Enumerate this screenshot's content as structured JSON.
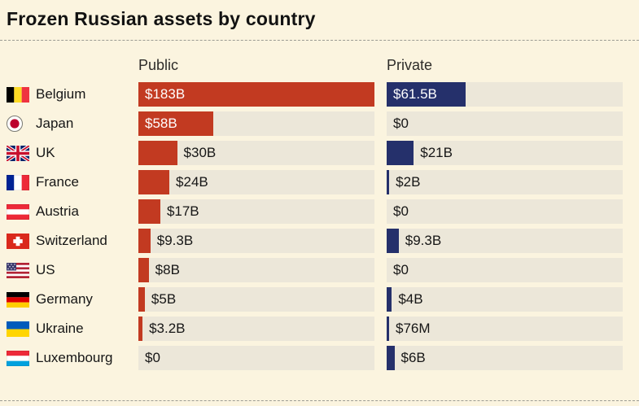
{
  "title": "Frozen Russian assets by country",
  "columns": {
    "public": "Public",
    "private": "Private"
  },
  "colors": {
    "background": "#FBF4DF",
    "public_bar": "#C23A21",
    "private_bar": "#25306B",
    "track": "#ECE7D9",
    "text": "#161616",
    "inside_label": "#FFFFFF",
    "divider": "#9B9B93"
  },
  "chart_data": {
    "type": "bar",
    "title": "Frozen Russian assets by country",
    "orientation": "horizontal",
    "categories": [
      "Belgium",
      "Japan",
      "UK",
      "France",
      "Austria",
      "Switzerland",
      "US",
      "Germany",
      "Ukraine",
      "Luxembourg"
    ],
    "series": [
      {
        "name": "Public",
        "values_billions": [
          183,
          58,
          30,
          24,
          17,
          9.3,
          8,
          5,
          3.2,
          0
        ],
        "labels": [
          "$183B",
          "$58B",
          "$30B",
          "$24B",
          "$17B",
          "$9.3B",
          "$8B",
          "$5B",
          "$3.2B",
          "$0"
        ],
        "color": "#C23A21"
      },
      {
        "name": "Private",
        "values_billions": [
          61.5,
          0,
          21,
          2,
          0,
          9.3,
          0,
          4,
          0.076,
          6
        ],
        "labels": [
          "$61.5B",
          "$0",
          "$21B",
          "$2B",
          "$0",
          "$9.3B",
          "$0",
          "$4B",
          "$76M",
          "$6B"
        ],
        "color": "#25306B"
      }
    ],
    "x_max_billions": 183,
    "grid": false,
    "legend_position": "column-headers"
  },
  "rows": [
    {
      "country": "Belgium",
      "flag": "belgium",
      "flag_icon": "belgium-flag-icon",
      "public": {
        "label": "$183B",
        "value": 183
      },
      "private": {
        "label": "$61.5B",
        "value": 61.5
      }
    },
    {
      "country": "Japan",
      "flag": "japan",
      "flag_icon": "japan-flag-icon",
      "public": {
        "label": "$58B",
        "value": 58
      },
      "private": {
        "label": "$0",
        "value": 0
      }
    },
    {
      "country": "UK",
      "flag": "uk",
      "flag_icon": "uk-flag-icon",
      "public": {
        "label": "$30B",
        "value": 30
      },
      "private": {
        "label": "$21B",
        "value": 21
      }
    },
    {
      "country": "France",
      "flag": "france",
      "flag_icon": "france-flag-icon",
      "public": {
        "label": "$24B",
        "value": 24
      },
      "private": {
        "label": "$2B",
        "value": 2
      }
    },
    {
      "country": "Austria",
      "flag": "austria",
      "flag_icon": "austria-flag-icon",
      "public": {
        "label": "$17B",
        "value": 17
      },
      "private": {
        "label": "$0",
        "value": 0
      }
    },
    {
      "country": "Switzerland",
      "flag": "switzerland",
      "flag_icon": "switzerland-flag-icon",
      "public": {
        "label": "$9.3B",
        "value": 9.3
      },
      "private": {
        "label": "$9.3B",
        "value": 9.3
      }
    },
    {
      "country": "US",
      "flag": "us",
      "flag_icon": "us-flag-icon",
      "public": {
        "label": "$8B",
        "value": 8
      },
      "private": {
        "label": "$0",
        "value": 0
      }
    },
    {
      "country": "Germany",
      "flag": "germany",
      "flag_icon": "germany-flag-icon",
      "public": {
        "label": "$5B",
        "value": 5
      },
      "private": {
        "label": "$4B",
        "value": 4
      }
    },
    {
      "country": "Ukraine",
      "flag": "ukraine",
      "flag_icon": "ukraine-flag-icon",
      "public": {
        "label": "$3.2B",
        "value": 3.2
      },
      "private": {
        "label": "$76M",
        "value": 0.076
      }
    },
    {
      "country": "Luxembourg",
      "flag": "luxembourg",
      "flag_icon": "luxembourg-flag-icon",
      "public": {
        "label": "$0",
        "value": 0
      },
      "private": {
        "label": "$6B",
        "value": 6
      }
    }
  ]
}
